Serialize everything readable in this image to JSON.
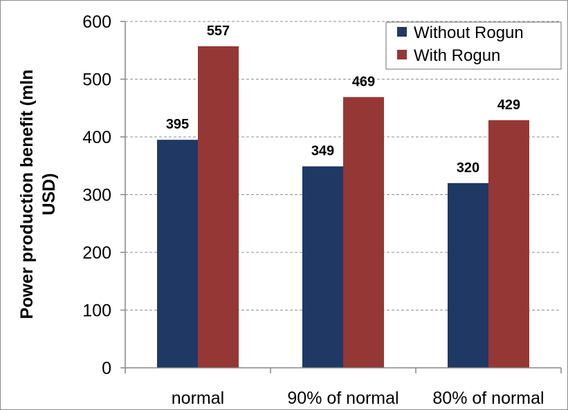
{
  "chart_data": {
    "type": "bar",
    "categories": [
      "normal",
      "90% of normal",
      "80% of normal"
    ],
    "series": [
      {
        "name": "Without Rogun",
        "values": [
          395,
          349,
          320
        ],
        "color": "#1f3864"
      },
      {
        "name": "With Rogun",
        "values": [
          557,
          469,
          429
        ],
        "color": "#953735"
      }
    ],
    "title": "",
    "xlabel": "",
    "ylabel_lines": [
      "Power production  benefit (mln",
      "USD)"
    ],
    "ylim": [
      0,
      600
    ],
    "yticks": [
      0,
      100,
      200,
      300,
      400,
      500,
      600
    ],
    "grid": "horizontal dashed",
    "legend_position": "top-right"
  }
}
